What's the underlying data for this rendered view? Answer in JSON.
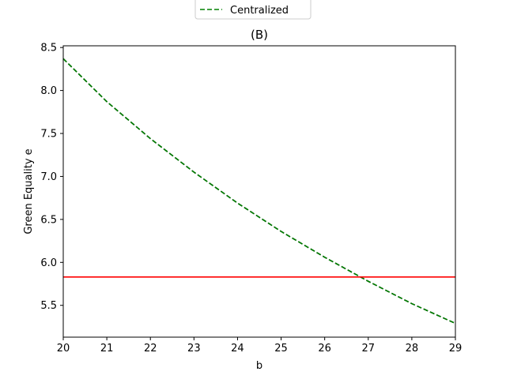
{
  "chart_data": {
    "type": "line",
    "title": "(B)",
    "xlabel": "b",
    "ylabel": "Green Equality e",
    "xlim": [
      20,
      29
    ],
    "ylim": [
      5.13,
      8.52
    ],
    "xticks": [
      20,
      21,
      22,
      23,
      24,
      25,
      26,
      27,
      28,
      29
    ],
    "yticks": [
      5.5,
      6.0,
      6.5,
      7.0,
      7.5,
      8.0,
      8.5
    ],
    "grid": false,
    "legend_position": "top-center",
    "series": [
      {
        "name": "",
        "color": "#000000",
        "style": "dashed",
        "x": [
          20,
          21,
          22,
          23,
          24,
          25,
          26,
          27,
          28,
          29
        ],
        "values": [
          8.37,
          7.87,
          7.44,
          7.05,
          6.69,
          6.36,
          6.06,
          5.78,
          5.52,
          5.29
        ]
      },
      {
        "name": "Centralized",
        "color": "#008000",
        "style": "dashed",
        "x": [
          20,
          21,
          22,
          23,
          24,
          25,
          26,
          27,
          28,
          29
        ],
        "values": [
          8.37,
          7.87,
          7.44,
          7.05,
          6.69,
          6.36,
          6.06,
          5.78,
          5.52,
          5.29
        ]
      },
      {
        "name": "",
        "color": "#ff0000",
        "style": "solid",
        "x": [
          20,
          29
        ],
        "values": [
          5.83,
          5.83
        ]
      }
    ]
  }
}
